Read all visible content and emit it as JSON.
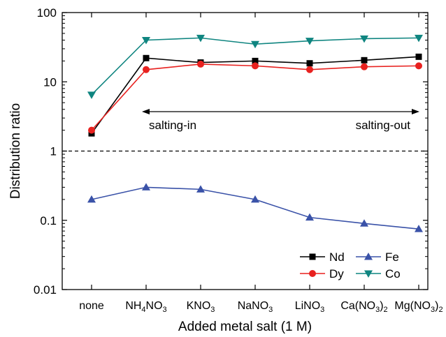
{
  "chart_data": {
    "type": "line",
    "title": "",
    "xlabel": "Added metal salt (1 M)",
    "ylabel": "Distribution ratio",
    "y_scale": "log",
    "ylim": [
      0.01,
      100
    ],
    "categories": [
      {
        "main": "none",
        "parts": []
      },
      {
        "main": "NH4NO3",
        "parts": [
          {
            "t": "NH",
            "sub": false
          },
          {
            "t": "4",
            "sub": true
          },
          {
            "t": "NO",
            "sub": false
          },
          {
            "t": "3",
            "sub": true
          }
        ]
      },
      {
        "main": "KNO3",
        "parts": [
          {
            "t": "KNO",
            "sub": false
          },
          {
            "t": "3",
            "sub": true
          }
        ]
      },
      {
        "main": "NaNO3",
        "parts": [
          {
            "t": "NaNO",
            "sub": false
          },
          {
            "t": "3",
            "sub": true
          }
        ]
      },
      {
        "main": "LiNO3",
        "parts": [
          {
            "t": "LiNO",
            "sub": false
          },
          {
            "t": "3",
            "sub": true
          }
        ]
      },
      {
        "main": "Ca(NO3)2",
        "parts": [
          {
            "t": "Ca(NO",
            "sub": false
          },
          {
            "t": "3",
            "sub": true
          },
          {
            "t": ")",
            "sub": false
          },
          {
            "t": "2",
            "sub": true
          }
        ]
      },
      {
        "main": "Mg(NO3)2",
        "parts": [
          {
            "t": "Mg(NO",
            "sub": false
          },
          {
            "t": "3",
            "sub": true
          },
          {
            "t": ")",
            "sub": false
          },
          {
            "t": "2",
            "sub": true
          }
        ]
      }
    ],
    "y_ticks": [
      {
        "value": 0.01,
        "label": "0.01"
      },
      {
        "value": 0.1,
        "label": "0.1"
      },
      {
        "value": 1,
        "label": "1"
      },
      {
        "value": 10,
        "label": "10"
      },
      {
        "value": 100,
        "label": "100"
      }
    ],
    "series": [
      {
        "name": "Nd",
        "color": "#000000",
        "marker": "square",
        "values": [
          1.8,
          22,
          19,
          20,
          18.5,
          20.5,
          23
        ]
      },
      {
        "name": "Dy",
        "color": "#e8211f",
        "marker": "circle",
        "values": [
          2.0,
          15,
          18,
          17,
          15,
          16.5,
          17
        ]
      },
      {
        "name": "Fe",
        "color": "#3a52a8",
        "marker": "triangle-up",
        "values": [
          0.2,
          0.3,
          0.28,
          0.2,
          0.11,
          0.09,
          0.075
        ]
      },
      {
        "name": "Co",
        "color": "#0f8580",
        "marker": "triangle-down",
        "values": [
          6.5,
          40,
          43,
          35,
          39,
          42,
          43
        ]
      }
    ],
    "reference_line": {
      "value": 1,
      "style": "dashed"
    },
    "annotation": {
      "left_label": "salting-in",
      "right_label": "salting-out",
      "arrow_at": 6
    },
    "legend": {
      "placement": "bottom-right",
      "columns": 2,
      "order": [
        "Nd",
        "Fe",
        "Dy",
        "Co"
      ]
    },
    "grid": false
  }
}
